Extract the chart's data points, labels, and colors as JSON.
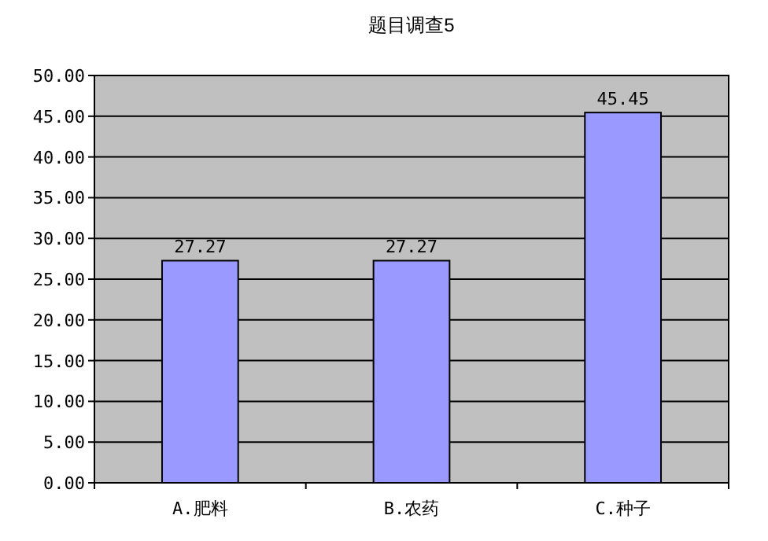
{
  "chart_data": {
    "type": "bar",
    "title": "题目调查5",
    "categories": [
      "A.肥料",
      "B.农药",
      "C.种子"
    ],
    "values": [
      27.27,
      27.27,
      45.45
    ],
    "color": "#9999ff",
    "ylim": [
      0,
      50
    ],
    "yticks": [
      {
        "value": 0,
        "label": "0.00"
      },
      {
        "value": 5,
        "label": "5.00"
      },
      {
        "value": 10,
        "label": "10.00"
      },
      {
        "value": 15,
        "label": "15.00"
      },
      {
        "value": 20,
        "label": "20.00"
      },
      {
        "value": 25,
        "label": "25.00"
      },
      {
        "value": 30,
        "label": "30.00"
      },
      {
        "value": 35,
        "label": "35.00"
      },
      {
        "value": 40,
        "label": "40.00"
      },
      {
        "value": 45,
        "label": "45.00"
      },
      {
        "value": 50,
        "label": "50.00"
      }
    ],
    "grid": "y",
    "data_labels": true
  }
}
